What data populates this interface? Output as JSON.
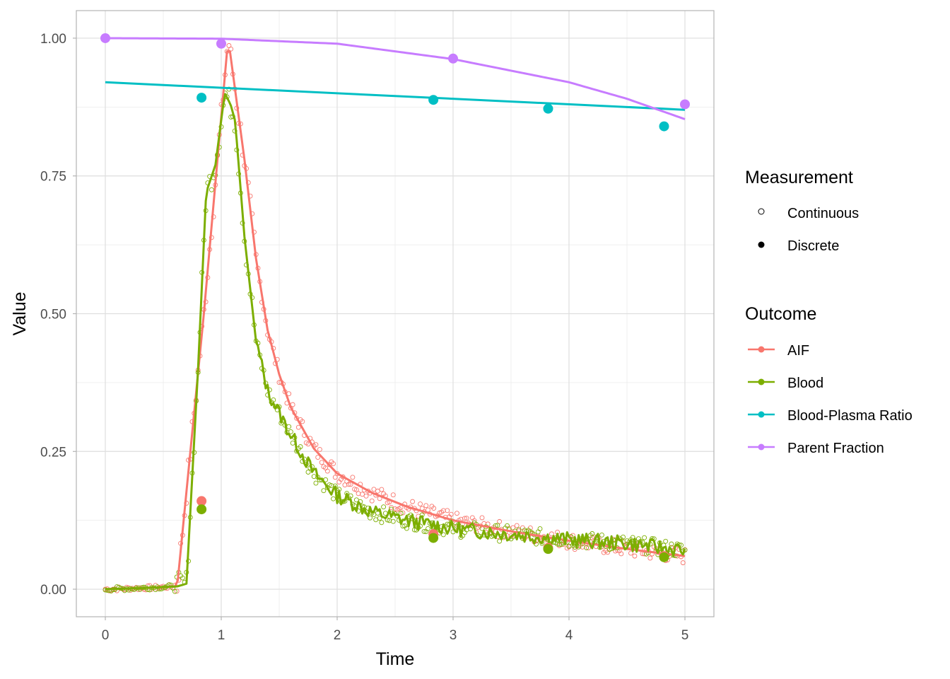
{
  "chart_data": {
    "type": "line",
    "xlabel": "Time",
    "ylabel": "Value",
    "xlim": [
      -0.25,
      5.25
    ],
    "ylim": [
      -0.05,
      1.05
    ],
    "x_ticks": [
      0,
      1,
      2,
      3,
      4,
      5
    ],
    "x_tick_labels": [
      "0",
      "1",
      "2",
      "3",
      "4",
      "5"
    ],
    "y_ticks": [
      0,
      0.25,
      0.5,
      0.75,
      1.0
    ],
    "y_tick_labels": [
      "0.00",
      "0.25",
      "0.50",
      "0.75",
      "1.00"
    ],
    "grid": true,
    "legend_position": "right",
    "legends": {
      "measurement": {
        "title": "Measurement",
        "entries": [
          {
            "label": "Continuous",
            "shape": "open-circle"
          },
          {
            "label": "Discrete",
            "shape": "filled-circle"
          }
        ]
      },
      "outcome": {
        "title": "Outcome",
        "entries": [
          {
            "label": "AIF",
            "color": "#F8766D"
          },
          {
            "label": "Blood",
            "color": "#7CAE00"
          },
          {
            "label": "Blood-Plasma Ratio",
            "color": "#00BFC4"
          },
          {
            "label": "Parent Fraction",
            "color": "#C77CFF"
          }
        ]
      }
    },
    "series": [
      {
        "name": "AIF",
        "color": "#F8766D",
        "discrete_points": [
          [
            0.83,
            0.16
          ],
          [
            2.83,
            0.1
          ],
          [
            3.82,
            0.075
          ],
          [
            4.82,
            0.06
          ]
        ],
        "fit_curve": [
          [
            0,
            0
          ],
          [
            0.3,
            0.002
          ],
          [
            0.62,
            0.005
          ],
          [
            0.85,
            0.5
          ],
          [
            1.06,
            1.0
          ],
          [
            1.2,
            0.78
          ],
          [
            1.3,
            0.6
          ],
          [
            1.4,
            0.47
          ],
          [
            1.5,
            0.39
          ],
          [
            1.6,
            0.33
          ],
          [
            1.8,
            0.255
          ],
          [
            2.0,
            0.21
          ],
          [
            2.3,
            0.175
          ],
          [
            2.6,
            0.15
          ],
          [
            3.0,
            0.125
          ],
          [
            3.5,
            0.105
          ],
          [
            4.0,
            0.088
          ],
          [
            4.5,
            0.073
          ],
          [
            5.0,
            0.06
          ]
        ]
      },
      {
        "name": "Blood",
        "color": "#7CAE00",
        "discrete_points": [
          [
            0.83,
            0.145
          ],
          [
            2.83,
            0.093
          ],
          [
            3.82,
            0.073
          ],
          [
            4.82,
            0.058
          ]
        ],
        "fit_curve": [
          [
            0,
            0
          ],
          [
            0.3,
            0.002
          ],
          [
            0.62,
            0.005
          ],
          [
            0.7,
            0.01
          ],
          [
            0.8,
            0.4
          ],
          [
            0.87,
            0.72
          ],
          [
            0.95,
            0.77
          ],
          [
            1.03,
            0.9
          ],
          [
            1.08,
            0.88
          ],
          [
            1.12,
            0.85
          ],
          [
            1.2,
            0.64
          ],
          [
            1.3,
            0.45
          ],
          [
            1.4,
            0.36
          ],
          [
            1.5,
            0.32
          ],
          [
            1.6,
            0.28
          ],
          [
            1.8,
            0.21
          ],
          [
            2.0,
            0.17
          ],
          [
            2.3,
            0.14
          ],
          [
            2.6,
            0.125
          ],
          [
            3.0,
            0.11
          ],
          [
            3.5,
            0.1
          ],
          [
            4.0,
            0.09
          ],
          [
            4.5,
            0.083
          ],
          [
            5.0,
            0.07
          ]
        ]
      },
      {
        "name": "Blood-Plasma Ratio",
        "color": "#00BFC4",
        "discrete_points": [
          [
            0.83,
            0.892
          ],
          [
            2.83,
            0.888
          ],
          [
            3.82,
            0.872
          ],
          [
            4.82,
            0.84
          ]
        ],
        "fit_curve": [
          [
            0,
            0.92
          ],
          [
            5.0,
            0.87
          ]
        ]
      },
      {
        "name": "Parent Fraction",
        "color": "#C77CFF",
        "discrete_points": [
          [
            0.0,
            1.0
          ],
          [
            1.0,
            0.99
          ],
          [
            3.0,
            0.963
          ],
          [
            5.0,
            0.88
          ]
        ],
        "fit_curve": [
          [
            0,
            1.0
          ],
          [
            1.0,
            0.999
          ],
          [
            2.0,
            0.99
          ],
          [
            3.0,
            0.962
          ],
          [
            4.0,
            0.92
          ],
          [
            4.5,
            0.89
          ],
          [
            5.0,
            0.853
          ]
        ]
      }
    ]
  }
}
